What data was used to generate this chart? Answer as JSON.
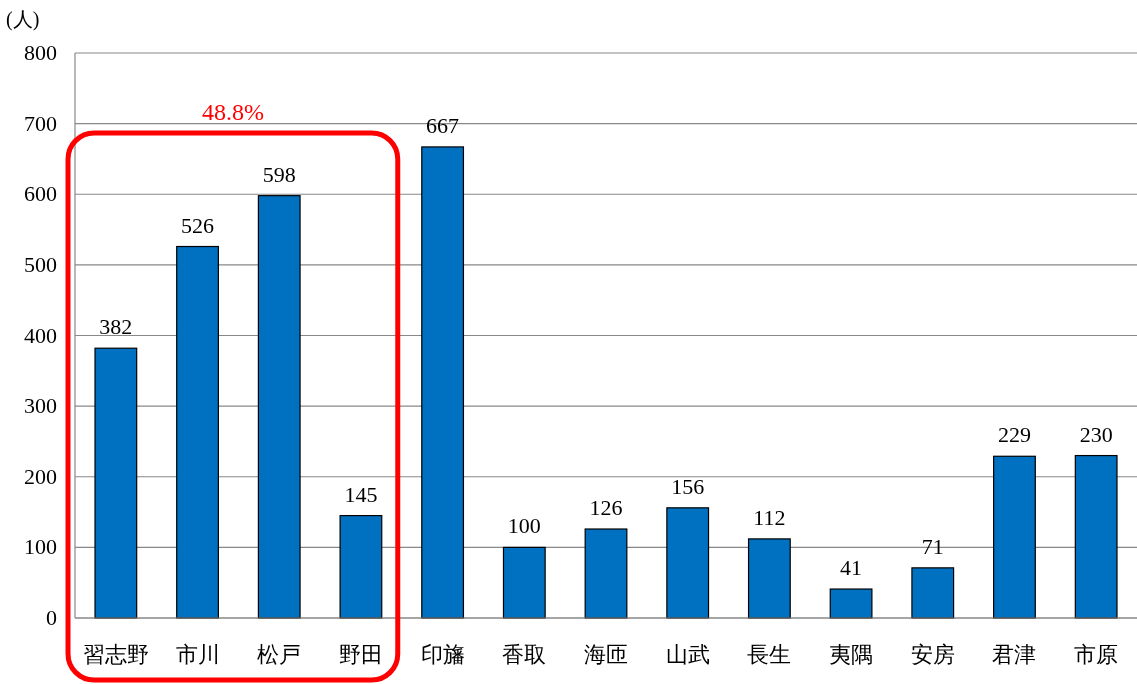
{
  "chart_data": {
    "type": "bar",
    "ylabel": "(人)",
    "categories": [
      "習志野",
      "市川",
      "松戸",
      "野田",
      "印旛",
      "香取",
      "海匝",
      "山武",
      "長生",
      "夷隅",
      "安房",
      "君津",
      "市原"
    ],
    "values": [
      382,
      526,
      598,
      145,
      667,
      100,
      126,
      156,
      112,
      41,
      71,
      229,
      230
    ],
    "color": "#0070c0",
    "ylim": [
      0,
      800
    ],
    "yticks": [
      0,
      100,
      200,
      300,
      400,
      500,
      600,
      700,
      800
    ],
    "grid": "y",
    "data_labels": true,
    "annotations": [
      "48.8%"
    ]
  }
}
